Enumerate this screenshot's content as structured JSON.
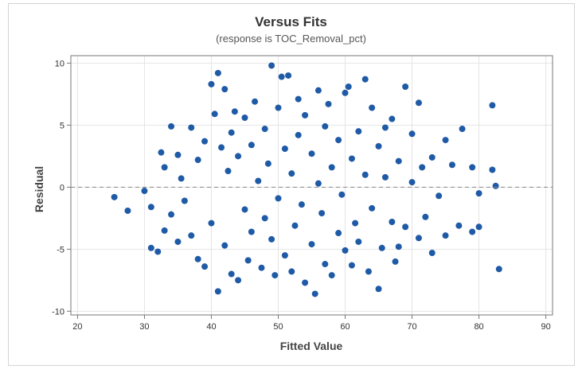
{
  "chart_data": {
    "type": "scatter",
    "title": "Versus Fits",
    "subtitle": "(response is TOC_Removal_pct)",
    "xlabel": "Fitted Value",
    "ylabel": "Residual",
    "xlim": [
      19,
      91
    ],
    "ylim": [
      -10.3,
      10.6
    ],
    "xticks": [
      20,
      30,
      40,
      50,
      60,
      70,
      80,
      90
    ],
    "yticks": [
      -10,
      -5,
      0,
      5,
      10
    ],
    "reference_line_y": 0,
    "grid": true,
    "marker_color": "#1f5aa6",
    "series": [
      {
        "values": [
          [
            25.5,
            -0.8
          ],
          [
            27.5,
            -1.9
          ],
          [
            30,
            -0.3
          ],
          [
            31,
            -1.6
          ],
          [
            31,
            -4.9
          ],
          [
            32,
            -5.2
          ],
          [
            32.5,
            2.8
          ],
          [
            33,
            -3.5
          ],
          [
            33,
            1.6
          ],
          [
            34,
            4.9
          ],
          [
            34,
            -2.2
          ],
          [
            35,
            2.6
          ],
          [
            35,
            -4.4
          ],
          [
            35.5,
            0.7
          ],
          [
            36,
            -1.1
          ],
          [
            37,
            4.8
          ],
          [
            37,
            -3.9
          ],
          [
            38,
            2.2
          ],
          [
            38,
            -5.8
          ],
          [
            39,
            3.7
          ],
          [
            39,
            -6.4
          ],
          [
            40,
            8.3
          ],
          [
            40,
            -2.9
          ],
          [
            40.5,
            5.9
          ],
          [
            41,
            9.2
          ],
          [
            41,
            -8.4
          ],
          [
            41.5,
            3.2
          ],
          [
            42,
            7.9
          ],
          [
            42,
            -4.7
          ],
          [
            42.5,
            1.3
          ],
          [
            43,
            -7
          ],
          [
            43,
            4.4
          ],
          [
            43.5,
            6.1
          ],
          [
            44,
            -7.5
          ],
          [
            44,
            2.5
          ],
          [
            45,
            5.6
          ],
          [
            45,
            -1.8
          ],
          [
            45.5,
            -5.9
          ],
          [
            46,
            3.4
          ],
          [
            46,
            -3.6
          ],
          [
            46.5,
            6.9
          ],
          [
            47,
            0.5
          ],
          [
            47.5,
            -6.5
          ],
          [
            48,
            4.7
          ],
          [
            48,
            -2.5
          ],
          [
            48.5,
            1.9
          ],
          [
            49,
            9.8
          ],
          [
            49,
            -4.2
          ],
          [
            49.5,
            -7.1
          ],
          [
            50,
            6.4
          ],
          [
            50,
            -0.9
          ],
          [
            50.5,
            8.9
          ],
          [
            51,
            3.1
          ],
          [
            51,
            -5.5
          ],
          [
            51.5,
            9
          ],
          [
            52,
            -6.8
          ],
          [
            52,
            1.1
          ],
          [
            52.5,
            -3.1
          ],
          [
            53,
            7.1
          ],
          [
            53,
            4.2
          ],
          [
            53.5,
            -1.4
          ],
          [
            54,
            5.8
          ],
          [
            54,
            -7.7
          ],
          [
            55,
            2.7
          ],
          [
            55,
            -4.6
          ],
          [
            55.5,
            -8.6
          ],
          [
            56,
            7.8
          ],
          [
            56,
            0.3
          ],
          [
            56.5,
            -2.1
          ],
          [
            57,
            4.9
          ],
          [
            57,
            -6.2
          ],
          [
            57.5,
            6.7
          ],
          [
            58,
            1.6
          ],
          [
            58,
            -7.1
          ],
          [
            59,
            3.8
          ],
          [
            59,
            -3.7
          ],
          [
            59.5,
            -0.6
          ],
          [
            60,
            7.6
          ],
          [
            60,
            -5.1
          ],
          [
            60.5,
            8.1
          ],
          [
            61,
            2.3
          ],
          [
            61,
            -6.3
          ],
          [
            61.5,
            -2.9
          ],
          [
            62,
            4.5
          ],
          [
            62,
            -4.4
          ],
          [
            63,
            8.7
          ],
          [
            63,
            1
          ],
          [
            63.5,
            -6.8
          ],
          [
            64,
            -1.7
          ],
          [
            64,
            6.4
          ],
          [
            65,
            3.3
          ],
          [
            65,
            -8.2
          ],
          [
            65.5,
            -4.9
          ],
          [
            66,
            4.8
          ],
          [
            66,
            0.8
          ],
          [
            67,
            -2.8
          ],
          [
            67,
            5.5
          ],
          [
            67.5,
            -6
          ],
          [
            68,
            2.1
          ],
          [
            68,
            -4.8
          ],
          [
            69,
            8.1
          ],
          [
            69,
            -3.2
          ],
          [
            70,
            0.4
          ],
          [
            70,
            4.3
          ],
          [
            71,
            -4.1
          ],
          [
            71,
            6.8
          ],
          [
            71.5,
            1.6
          ],
          [
            72,
            -2.4
          ],
          [
            73,
            -5.3
          ],
          [
            73,
            2.4
          ],
          [
            74,
            -0.7
          ],
          [
            75,
            3.8
          ],
          [
            75,
            -3.9
          ],
          [
            76,
            1.8
          ],
          [
            77,
            -3.1
          ],
          [
            77.5,
            4.7
          ],
          [
            79,
            1.6
          ],
          [
            79,
            -3.6
          ],
          [
            80,
            -3.2
          ],
          [
            80,
            -0.5
          ],
          [
            82,
            6.6
          ],
          [
            82,
            1.4
          ],
          [
            82.5,
            0.1
          ],
          [
            83,
            -6.6
          ]
        ]
      }
    ]
  }
}
